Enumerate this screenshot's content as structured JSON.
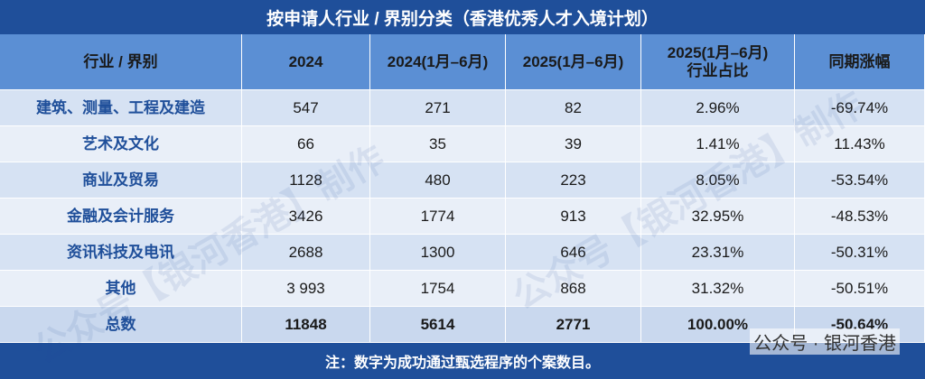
{
  "title": "按申请人行业 / 界别分类（香港优秀人才入境计划）",
  "table": {
    "header": [
      "行业 / 界别",
      "2024",
      "2024(1月–6月)",
      "2025(1月–6月)",
      [
        "2025(1月–6月)",
        "行业占比"
      ],
      "同期涨幅"
    ],
    "rows": [
      [
        "建筑、测量、工程及建造",
        "547",
        "271",
        "82",
        "2.96%",
        "-69.74%"
      ],
      [
        "艺术及文化",
        "66",
        "35",
        "39",
        "1.41%",
        "11.43%"
      ],
      [
        "商业及贸易",
        "1128",
        "480",
        "223",
        "8.05%",
        "-53.54%"
      ],
      [
        "金融及会计服务",
        "3426",
        "1774",
        "913",
        "32.95%",
        "-48.53%"
      ],
      [
        "资讯科技及电讯",
        "2688",
        "1300",
        "646",
        "23.31%",
        "-50.31%"
      ],
      [
        "其他",
        "3 993",
        "1754",
        "868",
        "31.32%",
        "-50.51%"
      ],
      [
        "总数",
        "11848",
        "5614",
        "2771",
        "100.00%",
        "-50.64%"
      ]
    ]
  },
  "note": "注：数字为成功通过甄选程序的个案数目。",
  "watermark": "公众号【银河香港】制作",
  "brand": "公众号 · 银河香港"
}
